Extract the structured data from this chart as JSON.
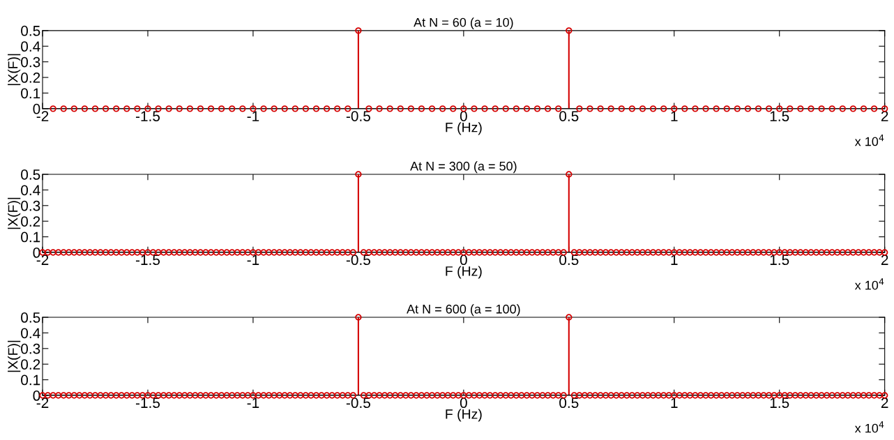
{
  "chart_data": [
    {
      "type": "lollipop",
      "title": "At N = 60 (a = 10)",
      "xlabel": "F (Hz)",
      "ylabel": "|X(F)|",
      "annotations": [
        "x 10$^{4}$"
      ],
      "x": [
        -1.95,
        -1.9,
        -1.85,
        -1.8,
        -1.75,
        -1.7,
        -1.65,
        -1.6,
        -1.55,
        -1.5,
        -1.45,
        -1.4,
        -1.35,
        -1.3,
        -1.25,
        -1.2,
        -1.15,
        -1.1,
        -1.05,
        -1,
        -0.95,
        -0.9,
        -0.85,
        -0.8,
        -0.75,
        -0.7,
        -0.65,
        -0.6,
        -0.55,
        -0.5,
        -0.45,
        -0.4,
        -0.35,
        -0.3,
        -0.25,
        -0.2,
        -0.15,
        -0.1,
        -0.05,
        0,
        0.05,
        0.1,
        0.15,
        0.2,
        0.25,
        0.3,
        0.35,
        0.4,
        0.45,
        0.5,
        0.55,
        0.6,
        0.65,
        0.7,
        0.75,
        0.8,
        0.85,
        0.9,
        0.95,
        1,
        1.05,
        1.1,
        1.15,
        1.2,
        1.25,
        1.3,
        1.35,
        1.4,
        1.45,
        1.5,
        1.55,
        1.6,
        1.65,
        1.7,
        1.75,
        1.8,
        1.85,
        1.9,
        1.95,
        2
      ],
      "series": [
        {
          "color": "#d40000",
          "values": [
            0,
            0,
            0,
            0,
            0,
            0,
            0,
            0,
            0,
            0,
            0,
            0,
            0,
            0,
            0,
            0,
            0,
            0,
            0,
            0,
            0,
            0,
            0,
            0,
            0,
            0,
            0,
            0,
            0,
            0.5,
            0,
            0,
            0,
            0,
            0,
            0,
            0,
            0,
            0,
            0,
            0,
            0,
            0,
            0,
            0,
            0,
            0,
            0,
            0,
            0.5,
            0,
            0,
            0,
            0,
            0,
            0,
            0,
            0,
            0,
            0,
            0,
            0,
            0,
            0,
            0,
            0,
            0,
            0,
            0,
            0,
            0,
            0,
            0,
            0,
            0,
            0,
            0,
            0,
            0,
            0
          ]
        }
      ],
      "xlim": [
        -2,
        2
      ],
      "xticks": [
        -2,
        -1.5,
        -1,
        -0.5,
        0,
        0.5,
        1,
        1.5,
        2
      ],
      "ylim": [
        0,
        0.5
      ],
      "yticks": [
        0,
        0.1,
        0.2,
        0.3,
        0.4,
        0.5
      ],
      "marker": "circle",
      "ref_lines": [
        {
          "axis": "y",
          "value": 0,
          "color": "#000000"
        }
      ]
    },
    {
      "type": "lollipop",
      "title": "At N = 300 (a = 50)",
      "xlabel": "F (Hz)",
      "ylabel": "|X(F)|",
      "annotations": [
        "x 10$^{4}$"
      ],
      "x": [
        -2,
        -1.975,
        -1.95,
        -1.925,
        -1.9,
        -1.875,
        -1.85,
        -1.825,
        -1.8,
        -1.775,
        -1.75,
        -1.725,
        -1.7,
        -1.675,
        -1.65,
        -1.625,
        -1.6,
        -1.575,
        -1.55,
        -1.525,
        -1.5,
        -1.475,
        -1.45,
        -1.425,
        -1.4,
        -1.375,
        -1.35,
        -1.325,
        -1.3,
        -1.275,
        -1.25,
        -1.225,
        -1.2,
        -1.175,
        -1.15,
        -1.125,
        -1.1,
        -1.075,
        -1.05,
        -1.025,
        -1,
        -0.975,
        -0.95,
        -0.925,
        -0.9,
        -0.875,
        -0.85,
        -0.825,
        -0.8,
        -0.775,
        -0.75,
        -0.725,
        -0.7,
        -0.675,
        -0.65,
        -0.625,
        -0.6,
        -0.575,
        -0.55,
        -0.525,
        -0.5,
        -0.475,
        -0.45,
        -0.425,
        -0.4,
        -0.375,
        -0.35,
        -0.325,
        -0.3,
        -0.275,
        -0.25,
        -0.225,
        -0.2,
        -0.175,
        -0.15,
        -0.125,
        -0.1,
        -0.075,
        -0.05,
        -0.025,
        0,
        0.025,
        0.05,
        0.075,
        0.1,
        0.125,
        0.15,
        0.175,
        0.2,
        0.225,
        0.25,
        0.275,
        0.3,
        0.325,
        0.35,
        0.375,
        0.4,
        0.425,
        0.45,
        0.475,
        0.5,
        0.525,
        0.55,
        0.575,
        0.6,
        0.625,
        0.65,
        0.675,
        0.7,
        0.725,
        0.75,
        0.775,
        0.8,
        0.825,
        0.85,
        0.875,
        0.9,
        0.925,
        0.95,
        0.975,
        1,
        1.025,
        1.05,
        1.075,
        1.1,
        1.125,
        1.15,
        1.175,
        1.2,
        1.225,
        1.25,
        1.275,
        1.3,
        1.325,
        1.35,
        1.375,
        1.4,
        1.425,
        1.45,
        1.475,
        1.5,
        1.525,
        1.55,
        1.575,
        1.6,
        1.625,
        1.65,
        1.675,
        1.7,
        1.725,
        1.75,
        1.775,
        1.8,
        1.825,
        1.85,
        1.875,
        1.9,
        1.925,
        1.95,
        1.975,
        2
      ],
      "series": [
        {
          "color": "#d40000",
          "values": [
            0,
            0,
            0,
            0,
            0,
            0,
            0,
            0,
            0,
            0,
            0,
            0,
            0,
            0,
            0,
            0,
            0,
            0,
            0,
            0,
            0,
            0,
            0,
            0,
            0,
            0,
            0,
            0,
            0,
            0,
            0,
            0,
            0,
            0,
            0,
            0,
            0,
            0,
            0,
            0,
            0,
            0,
            0,
            0,
            0,
            0,
            0,
            0,
            0,
            0,
            0,
            0,
            0,
            0,
            0,
            0,
            0,
            0,
            0,
            0,
            0.5,
            0,
            0,
            0,
            0,
            0,
            0,
            0,
            0,
            0,
            0,
            0,
            0,
            0,
            0,
            0,
            0,
            0,
            0,
            0,
            0,
            0,
            0,
            0,
            0,
            0,
            0,
            0,
            0,
            0,
            0,
            0,
            0,
            0,
            0,
            0,
            0,
            0,
            0,
            0,
            0.5,
            0,
            0,
            0,
            0,
            0,
            0,
            0,
            0,
            0,
            0,
            0,
            0,
            0,
            0,
            0,
            0,
            0,
            0,
            0,
            0,
            0,
            0,
            0,
            0,
            0,
            0,
            0,
            0,
            0,
            0,
            0,
            0,
            0,
            0,
            0,
            0,
            0,
            0,
            0,
            0,
            0,
            0,
            0,
            0,
            0,
            0,
            0,
            0,
            0,
            0,
            0,
            0,
            0,
            0,
            0,
            0,
            0,
            0,
            0,
            0
          ]
        }
      ],
      "xlim": [
        -2,
        2
      ],
      "xticks": [
        -2,
        -1.5,
        -1,
        -0.5,
        0,
        0.5,
        1,
        1.5,
        2
      ],
      "ylim": [
        0,
        0.5
      ],
      "yticks": [
        0,
        0.1,
        0.2,
        0.3,
        0.4,
        0.5
      ],
      "marker": "circle",
      "ref_lines": [
        {
          "axis": "y",
          "value": 0,
          "color": "#000000"
        }
      ]
    },
    {
      "type": "lollipop",
      "title": "At N = 600 (a = 100)",
      "xlabel": "F (Hz)",
      "ylabel": "|X(F)|",
      "annotations": [
        "x 10$^{4}$"
      ],
      "x": [
        -2,
        -1.975,
        -1.95,
        -1.925,
        -1.9,
        -1.875,
        -1.85,
        -1.825,
        -1.8,
        -1.775,
        -1.75,
        -1.725,
        -1.7,
        -1.675,
        -1.65,
        -1.625,
        -1.6,
        -1.575,
        -1.55,
        -1.525,
        -1.5,
        -1.475,
        -1.45,
        -1.425,
        -1.4,
        -1.375,
        -1.35,
        -1.325,
        -1.3,
        -1.275,
        -1.25,
        -1.225,
        -1.2,
        -1.175,
        -1.15,
        -1.125,
        -1.1,
        -1.075,
        -1.05,
        -1.025,
        -1,
        -0.975,
        -0.95,
        -0.925,
        -0.9,
        -0.875,
        -0.85,
        -0.825,
        -0.8,
        -0.775,
        -0.75,
        -0.725,
        -0.7,
        -0.675,
        -0.65,
        -0.625,
        -0.6,
        -0.575,
        -0.55,
        -0.525,
        -0.5,
        -0.475,
        -0.45,
        -0.425,
        -0.4,
        -0.375,
        -0.35,
        -0.325,
        -0.3,
        -0.275,
        -0.25,
        -0.225,
        -0.2,
        -0.175,
        -0.15,
        -0.125,
        -0.1,
        -0.075,
        -0.05,
        -0.025,
        0,
        0.025,
        0.05,
        0.075,
        0.1,
        0.125,
        0.15,
        0.175,
        0.2,
        0.225,
        0.25,
        0.275,
        0.3,
        0.325,
        0.35,
        0.375,
        0.4,
        0.425,
        0.45,
        0.475,
        0.5,
        0.525,
        0.55,
        0.575,
        0.6,
        0.625,
        0.65,
        0.675,
        0.7,
        0.725,
        0.75,
        0.775,
        0.8,
        0.825,
        0.85,
        0.875,
        0.9,
        0.925,
        0.95,
        0.975,
        1,
        1.025,
        1.05,
        1.075,
        1.1,
        1.125,
        1.15,
        1.175,
        1.2,
        1.225,
        1.25,
        1.275,
        1.3,
        1.325,
        1.35,
        1.375,
        1.4,
        1.425,
        1.45,
        1.475,
        1.5,
        1.525,
        1.55,
        1.575,
        1.6,
        1.625,
        1.65,
        1.675,
        1.7,
        1.725,
        1.75,
        1.775,
        1.8,
        1.825,
        1.85,
        1.875,
        1.9,
        1.925,
        1.95,
        1.975,
        2
      ],
      "series": [
        {
          "color": "#d40000",
          "values": [
            0,
            0,
            0,
            0,
            0,
            0,
            0,
            0,
            0,
            0,
            0,
            0,
            0,
            0,
            0,
            0,
            0,
            0,
            0,
            0,
            0,
            0,
            0,
            0,
            0,
            0,
            0,
            0,
            0,
            0,
            0,
            0,
            0,
            0,
            0,
            0,
            0,
            0,
            0,
            0,
            0,
            0,
            0,
            0,
            0,
            0,
            0,
            0,
            0,
            0,
            0,
            0,
            0,
            0,
            0,
            0,
            0,
            0,
            0,
            0,
            0.5,
            0,
            0,
            0,
            0,
            0,
            0,
            0,
            0,
            0,
            0,
            0,
            0,
            0,
            0,
            0,
            0,
            0,
            0,
            0,
            0,
            0,
            0,
            0,
            0,
            0,
            0,
            0,
            0,
            0,
            0,
            0,
            0,
            0,
            0,
            0,
            0,
            0,
            0,
            0,
            0.5,
            0,
            0,
            0,
            0,
            0,
            0,
            0,
            0,
            0,
            0,
            0,
            0,
            0,
            0,
            0,
            0,
            0,
            0,
            0,
            0,
            0,
            0,
            0,
            0,
            0,
            0,
            0,
            0,
            0,
            0,
            0,
            0,
            0,
            0,
            0,
            0,
            0,
            0,
            0,
            0,
            0,
            0,
            0,
            0,
            0,
            0,
            0,
            0,
            0,
            0,
            0,
            0,
            0,
            0,
            0,
            0,
            0,
            0,
            0,
            0
          ]
        }
      ],
      "xlim": [
        -2,
        2
      ],
      "xticks": [
        -2,
        -1.5,
        -1,
        -0.5,
        0,
        0.5,
        1,
        1.5,
        2
      ],
      "ylim": [
        0,
        0.5
      ],
      "yticks": [
        0,
        0.1,
        0.2,
        0.3,
        0.4,
        0.5
      ],
      "marker": "circle",
      "ref_lines": [
        {
          "axis": "y",
          "value": 0,
          "color": "#000000"
        }
      ]
    }
  ]
}
